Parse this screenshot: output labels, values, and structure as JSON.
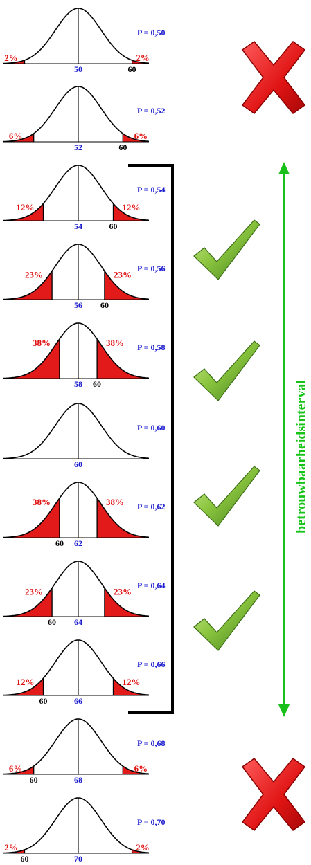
{
  "colors": {
    "tail_fill": "#e21a1a",
    "curve": "#000000",
    "p_label": "#1c1ccf",
    "percent_label": "#e01010",
    "interval_arrow": "#19c019",
    "interval_text": "#18c318",
    "cross": "#e01818",
    "check": "#6aa82a"
  },
  "icons": {
    "reject": "red-cross-icon",
    "accept": "green-checkmark-icon"
  },
  "interval_label": "betrouwbaarheidsinterval",
  "sample_value": "60",
  "panels": [
    {
      "p": "P = 0,50",
      "mean": "50",
      "percent": "2%",
      "tail": 0.02
    },
    {
      "p": "P = 0,52",
      "mean": "52",
      "percent": "6%",
      "tail": 0.06
    },
    {
      "p": "P = 0,54",
      "mean": "54",
      "percent": "12%",
      "tail": 0.12
    },
    {
      "p": "P = 0,56",
      "mean": "56",
      "percent": "23%",
      "tail": 0.23
    },
    {
      "p": "P = 0,58",
      "mean": "58",
      "percent": "38%",
      "tail": 0.38
    },
    {
      "p": "P = 0,60",
      "mean": "60",
      "percent": "",
      "tail": 0
    },
    {
      "p": "P = 0,62",
      "mean": "62",
      "percent": "38%",
      "tail": 0.38
    },
    {
      "p": "P = 0,64",
      "mean": "64",
      "percent": "23%",
      "tail": 0.23
    },
    {
      "p": "P = 0,66",
      "mean": "66",
      "percent": "12%",
      "tail": 0.12
    },
    {
      "p": "P = 0,68",
      "mean": "68",
      "percent": "6%",
      "tail": 0.06
    },
    {
      "p": "P = 0,70",
      "mean": "70",
      "percent": "2%",
      "tail": 0.02
    }
  ]
}
